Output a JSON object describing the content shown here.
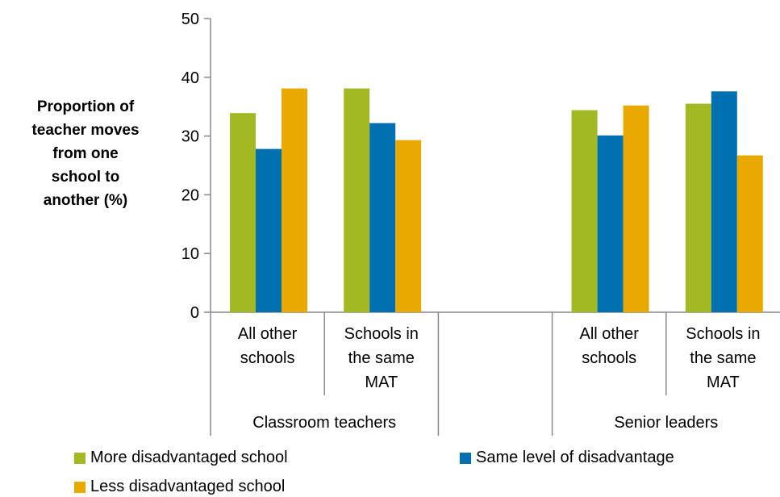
{
  "chart_data": {
    "type": "bar",
    "ylabel_lines": [
      "Proportion of",
      "teacher moves",
      "from one",
      "school to",
      "another (%)"
    ],
    "ylim": [
      0,
      50
    ],
    "yticks": [
      0,
      10,
      20,
      30,
      40,
      50
    ],
    "grid": false,
    "legend_position": "bottom",
    "groups": [
      {
        "label": "Classroom teachers",
        "categories": [
          {
            "label_lines": [
              "All other",
              "schools"
            ],
            "values": [
              33.9,
              27.8,
              38.1
            ]
          },
          {
            "label_lines": [
              "Schools in",
              "the same",
              "MAT"
            ],
            "values": [
              38.1,
              32.2,
              29.3
            ]
          }
        ]
      },
      {
        "label": "Senior leaders",
        "categories": [
          {
            "label_lines": [
              "All other",
              "schools"
            ],
            "values": [
              34.4,
              30.1,
              35.2
            ]
          },
          {
            "label_lines": [
              "Schools in",
              "the same",
              "MAT"
            ],
            "values": [
              35.5,
              37.6,
              26.7
            ]
          }
        ]
      }
    ],
    "series": [
      {
        "name": "More disadvantaged school",
        "color": "#a2b924"
      },
      {
        "name": "Same level of disadvantage",
        "color": "#0070b0"
      },
      {
        "name": "Less disadvantaged school",
        "color": "#eaa900"
      }
    ]
  }
}
